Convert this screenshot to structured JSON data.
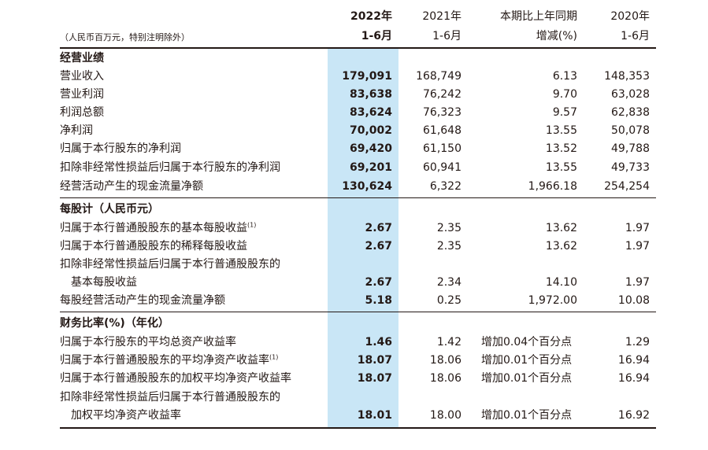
{
  "header": {
    "unit_note": "（人民币百万元，特别注明除外）",
    "col1_line1": "2022年",
    "col1_line2": "1-6月",
    "col2_line1": "2021年",
    "col2_line2": "1-6月",
    "col3_line1": "本期比上年同期",
    "col3_line2": "增减(%)",
    "col4_line1": "2020年",
    "col4_line2": "1-6月"
  },
  "sections": [
    {
      "title": "经营业绩",
      "rows": [
        {
          "label": "营业收入",
          "sup": "",
          "v2022": "179,091",
          "v2021": "168,749",
          "change": "6.13",
          "v2020": "148,353"
        },
        {
          "label": "营业利润",
          "sup": "",
          "v2022": "83,638",
          "v2021": "76,242",
          "change": "9.70",
          "v2020": "63,028"
        },
        {
          "label": "利润总额",
          "sup": "",
          "v2022": "83,624",
          "v2021": "76,323",
          "change": "9.57",
          "v2020": "62,838"
        },
        {
          "label": "净利润",
          "sup": "",
          "v2022": "70,002",
          "v2021": "61,648",
          "change": "13.55",
          "v2020": "50,078"
        },
        {
          "label": "归属于本行股东的净利润",
          "sup": "",
          "v2022": "69,420",
          "v2021": "61,150",
          "change": "13.52",
          "v2020": "49,788"
        },
        {
          "label": "扣除非经常性损益后归属于本行股东的净利润",
          "sup": "",
          "v2022": "69,201",
          "v2021": "60,941",
          "change": "13.55",
          "v2020": "49,733"
        },
        {
          "label": "经营活动产生的现金流量净额",
          "sup": "",
          "v2022": "130,624",
          "v2021": "6,322",
          "change": "1,966.18",
          "v2020": "254,254"
        }
      ]
    },
    {
      "title": "每股计（人民币元）",
      "rows": [
        {
          "label": "归属于本行普通股股东的基本每股收益",
          "sup": "(1)",
          "v2022": "2.67",
          "v2021": "2.35",
          "change": "13.62",
          "v2020": "1.97"
        },
        {
          "label": "归属于本行普通股股东的稀释每股收益",
          "sup": "",
          "v2022": "2.67",
          "v2021": "2.35",
          "change": "13.62",
          "v2020": "1.97"
        },
        {
          "label": "扣除非经常性损益后归属于本行普通股股东的",
          "label2": "基本每股收益",
          "sup": "",
          "v2022": "2.67",
          "v2021": "2.34",
          "change": "14.10",
          "v2020": "1.97"
        },
        {
          "label": "每股经营活动产生的现金流量净额",
          "sup": "",
          "v2022": "5.18",
          "v2021": "0.25",
          "change": "1,972.00",
          "v2020": "10.08"
        }
      ]
    },
    {
      "title": "财务比率(%)（年化）",
      "rows": [
        {
          "label": "归属于本行股东的平均总资产收益率",
          "sup": "",
          "v2022": "1.46",
          "v2021": "1.42",
          "change": "增加0.04个百分点",
          "v2020": "1.29"
        },
        {
          "label": "归属于本行普通股股东的平均净资产收益率",
          "sup": "(1)",
          "v2022": "18.07",
          "v2021": "18.06",
          "change": "增加0.01个百分点",
          "v2020": "16.94"
        },
        {
          "label": "归属于本行普通股股东的加权平均净资产收益率",
          "sup": "",
          "v2022": "18.07",
          "v2021": "18.06",
          "change": "增加0.01个百分点",
          "v2020": "16.94"
        },
        {
          "label": "扣除非经常性损益后归属于本行普通股股东的",
          "label2": "加权平均净资产收益率",
          "sup": "",
          "v2022": "18.01",
          "v2021": "18.00",
          "change": "增加0.01个百分点",
          "v2020": "16.92"
        }
      ]
    }
  ]
}
